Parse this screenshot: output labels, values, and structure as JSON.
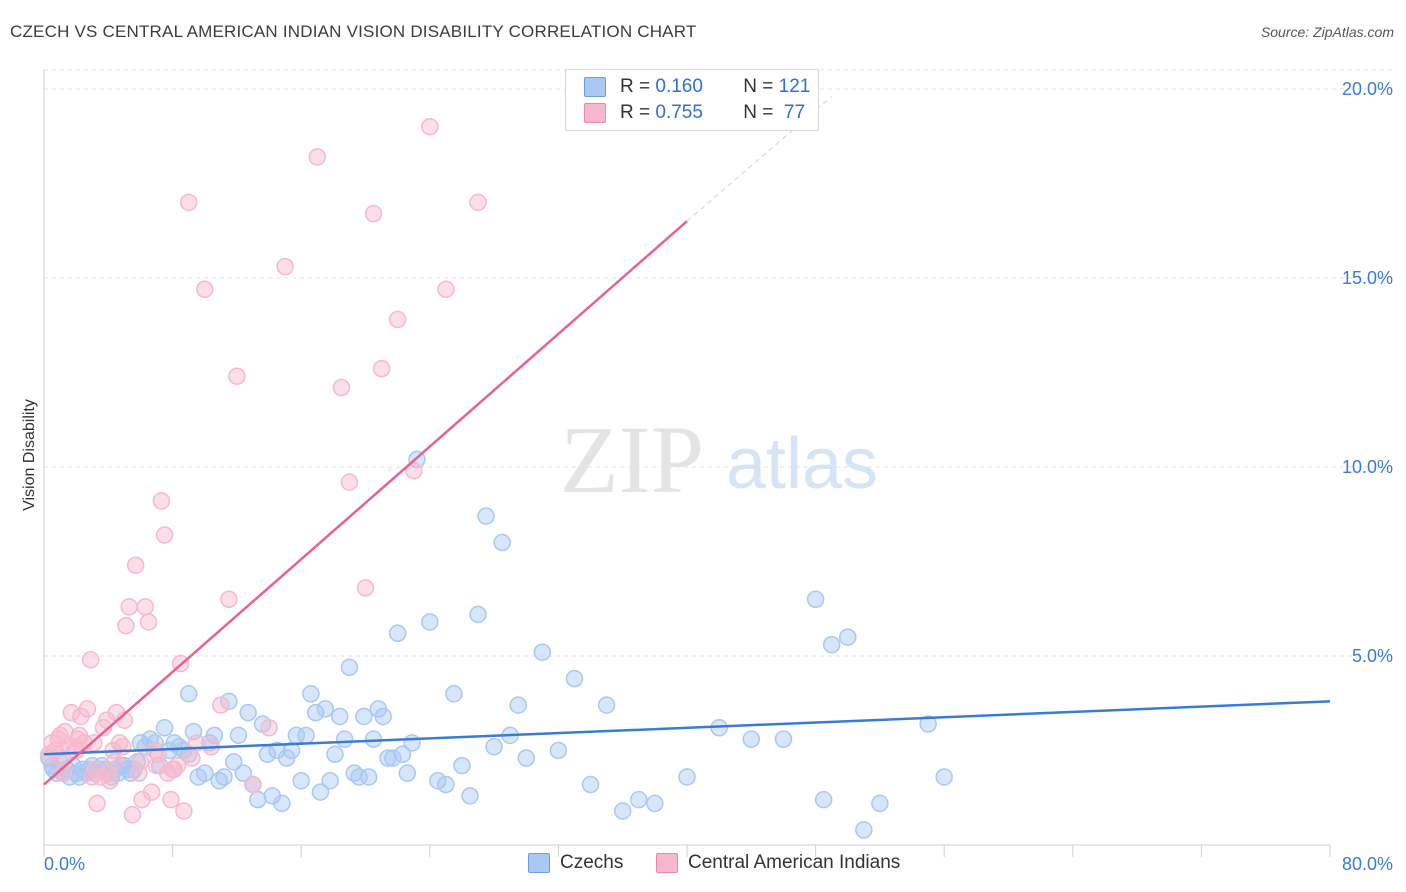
{
  "header": {
    "title": "CZECH VS CENTRAL AMERICAN INDIAN VISION DISABILITY CORRELATION CHART",
    "source": "Source: ZipAtlas.com"
  },
  "watermark": {
    "zip": "ZIP",
    "atlas": "atlas"
  },
  "legend": {
    "rows": [
      {
        "r_label": "R =",
        "r_value": "0.160",
        "n_label": "N =",
        "n_value": "121",
        "color": "#a9c8f2"
      },
      {
        "r_label": "R =",
        "r_value": "0.755",
        "n_label": "N =",
        "n_value": "77",
        "color": "#f7b8cb"
      }
    ]
  },
  "bottom_legend": [
    {
      "label": "Czechs",
      "color": "#a9c8f2"
    },
    {
      "label": "Central American Indians",
      "color": "#f7b8cb"
    }
  ],
  "chart_data": {
    "type": "scatter",
    "title": "CZECH VS CENTRAL AMERICAN INDIAN VISION DISABILITY CORRELATION CHART",
    "xlabel": "",
    "ylabel": "Vision Disability",
    "xlim": [
      0,
      80
    ],
    "ylim": [
      0,
      20.5
    ],
    "x_tick_labels": [
      "0.0%",
      "80.0%"
    ],
    "y_ticks": [
      5,
      10,
      15,
      20
    ],
    "y_tick_labels": [
      "5.0%",
      "10.0%",
      "15.0%",
      "20.0%"
    ],
    "grid": true,
    "series": [
      {
        "name": "Czechs",
        "color": "#3a7bd5",
        "fill": "#a9c8f2",
        "trend": {
          "x": [
            0,
            80
          ],
          "y": [
            2.4,
            3.8
          ],
          "style": "solid"
        },
        "points": [
          [
            0.3,
            2.3
          ],
          [
            0.5,
            2.1
          ],
          [
            0.6,
            2.0
          ],
          [
            0.8,
            1.9
          ],
          [
            1.0,
            2.2
          ],
          [
            1.2,
            1.9
          ],
          [
            1.4,
            2.0
          ],
          [
            1.6,
            1.8
          ],
          [
            1.8,
            2.1
          ],
          [
            2.0,
            1.9
          ],
          [
            2.2,
            1.8
          ],
          [
            2.4,
            2.0
          ],
          [
            2.6,
            1.9
          ],
          [
            2.8,
            2.0
          ],
          [
            3.0,
            2.1
          ],
          [
            3.2,
            1.9
          ],
          [
            3.4,
            2.0
          ],
          [
            3.6,
            2.1
          ],
          [
            3.8,
            2.0
          ],
          [
            4.0,
            1.9
          ],
          [
            4.2,
            1.8
          ],
          [
            4.4,
            2.0
          ],
          [
            4.6,
            1.9
          ],
          [
            4.8,
            2.1
          ],
          [
            5.0,
            2.1
          ],
          [
            5.2,
            2.0
          ],
          [
            5.4,
            1.9
          ],
          [
            5.6,
            2.0
          ],
          [
            5.8,
            2.2
          ],
          [
            6.0,
            2.7
          ],
          [
            6.3,
            2.6
          ],
          [
            6.6,
            2.8
          ],
          [
            6.9,
            2.7
          ],
          [
            7.2,
            2.1
          ],
          [
            7.5,
            3.1
          ],
          [
            7.8,
            2.5
          ],
          [
            8.1,
            2.7
          ],
          [
            8.4,
            2.6
          ],
          [
            8.7,
            2.5
          ],
          [
            9.0,
            2.4
          ],
          [
            9.3,
            3.0
          ],
          [
            9.6,
            1.8
          ],
          [
            9.0,
            4.0
          ],
          [
            10.0,
            1.9
          ],
          [
            10.3,
            2.7
          ],
          [
            10.6,
            2.9
          ],
          [
            10.9,
            1.7
          ],
          [
            11.2,
            1.8
          ],
          [
            11.5,
            3.8
          ],
          [
            11.8,
            2.2
          ],
          [
            12.1,
            2.9
          ],
          [
            12.4,
            1.9
          ],
          [
            12.7,
            3.5
          ],
          [
            13.0,
            1.6
          ],
          [
            13.3,
            1.2
          ],
          [
            13.6,
            3.2
          ],
          [
            13.9,
            2.4
          ],
          [
            14.2,
            1.3
          ],
          [
            14.5,
            2.5
          ],
          [
            14.8,
            1.1
          ],
          [
            15.1,
            2.3
          ],
          [
            15.4,
            2.5
          ],
          [
            15.7,
            2.9
          ],
          [
            16.0,
            1.7
          ],
          [
            16.3,
            2.9
          ],
          [
            16.6,
            4.0
          ],
          [
            16.9,
            3.5
          ],
          [
            17.2,
            1.4
          ],
          [
            17.5,
            3.6
          ],
          [
            17.8,
            1.7
          ],
          [
            18.1,
            2.4
          ],
          [
            18.4,
            3.4
          ],
          [
            18.7,
            2.8
          ],
          [
            19.0,
            4.7
          ],
          [
            19.3,
            1.9
          ],
          [
            19.6,
            1.8
          ],
          [
            19.9,
            3.4
          ],
          [
            20.2,
            1.8
          ],
          [
            20.5,
            2.8
          ],
          [
            20.8,
            3.6
          ],
          [
            21.1,
            3.4
          ],
          [
            21.4,
            2.3
          ],
          [
            21.7,
            2.3
          ],
          [
            22.0,
            5.6
          ],
          [
            22.3,
            2.4
          ],
          [
            22.6,
            1.9
          ],
          [
            22.9,
            2.7
          ],
          [
            23.2,
            10.2
          ],
          [
            24.0,
            5.9
          ],
          [
            24.5,
            1.7
          ],
          [
            25.0,
            1.6
          ],
          [
            25.5,
            4.0
          ],
          [
            26.0,
            2.1
          ],
          [
            26.5,
            1.3
          ],
          [
            27.0,
            6.1
          ],
          [
            27.5,
            8.7
          ],
          [
            28.0,
            2.6
          ],
          [
            28.5,
            8.0
          ],
          [
            29.0,
            2.9
          ],
          [
            29.5,
            3.7
          ],
          [
            30.0,
            2.3
          ],
          [
            31.0,
            5.1
          ],
          [
            32.0,
            2.5
          ],
          [
            33.0,
            4.4
          ],
          [
            34.0,
            1.6
          ],
          [
            35.0,
            3.7
          ],
          [
            36.0,
            0.9
          ],
          [
            37.0,
            1.2
          ],
          [
            38.0,
            1.1
          ],
          [
            40.0,
            1.8
          ],
          [
            42.0,
            3.1
          ],
          [
            44.0,
            2.8
          ],
          [
            46.0,
            2.8
          ],
          [
            48.0,
            6.5
          ],
          [
            48.5,
            1.2
          ],
          [
            49.0,
            5.3
          ],
          [
            50.0,
            5.5
          ],
          [
            51.0,
            0.4
          ],
          [
            52.0,
            1.1
          ],
          [
            55.0,
            3.2
          ],
          [
            56.0,
            1.8
          ]
        ]
      },
      {
        "name": "Central American Indians",
        "color": "#e8628e",
        "fill": "#f7b8cb",
        "trend": {
          "x": [
            0,
            40
          ],
          "y": [
            1.6,
            16.5
          ],
          "style": "solid",
          "extension": {
            "x": [
              40,
              49
            ],
            "y": [
              16.5,
              19.8
            ],
            "style": "dashed"
          }
        },
        "points": [
          [
            0.3,
            2.4
          ],
          [
            0.5,
            2.7
          ],
          [
            0.7,
            2.5
          ],
          [
            0.9,
            2.8
          ],
          [
            1.1,
            2.3
          ],
          [
            1.3,
            3.0
          ],
          [
            1.5,
            2.6
          ],
          [
            1.7,
            3.5
          ],
          [
            1.9,
            2.6
          ],
          [
            2.1,
            2.8
          ],
          [
            2.3,
            3.4
          ],
          [
            2.5,
            2.7
          ],
          [
            2.7,
            3.6
          ],
          [
            2.9,
            4.9
          ],
          [
            3.1,
            2.7
          ],
          [
            3.3,
            1.1
          ],
          [
            3.5,
            1.8
          ],
          [
            3.7,
            3.1
          ],
          [
            3.9,
            3.3
          ],
          [
            4.1,
            1.7
          ],
          [
            4.3,
            2.5
          ],
          [
            4.5,
            3.5
          ],
          [
            4.7,
            2.7
          ],
          [
            4.9,
            2.6
          ],
          [
            5.1,
            5.8
          ],
          [
            5.3,
            6.3
          ],
          [
            5.5,
            0.8
          ],
          [
            5.7,
            7.4
          ],
          [
            5.9,
            1.9
          ],
          [
            6.1,
            1.2
          ],
          [
            6.3,
            6.3
          ],
          [
            6.5,
            5.9
          ],
          [
            6.7,
            1.4
          ],
          [
            6.9,
            2.5
          ],
          [
            7.1,
            2.4
          ],
          [
            7.3,
            9.1
          ],
          [
            7.5,
            8.2
          ],
          [
            7.7,
            1.9
          ],
          [
            7.9,
            1.2
          ],
          [
            8.1,
            2.0
          ],
          [
            8.3,
            2.1
          ],
          [
            8.5,
            4.8
          ],
          [
            8.7,
            0.9
          ],
          [
            9.0,
            17.0
          ],
          [
            9.5,
            2.7
          ],
          [
            10.0,
            14.7
          ],
          [
            11.0,
            3.7
          ],
          [
            11.5,
            6.5
          ],
          [
            12.0,
            12.4
          ],
          [
            13.0,
            1.6
          ],
          [
            14.0,
            3.1
          ],
          [
            15.0,
            15.3
          ],
          [
            17.0,
            18.2
          ],
          [
            18.5,
            12.1
          ],
          [
            19.0,
            9.6
          ],
          [
            20.0,
            6.8
          ],
          [
            20.5,
            16.7
          ],
          [
            21.0,
            12.6
          ],
          [
            22.0,
            13.9
          ],
          [
            23.0,
            9.9
          ],
          [
            24.0,
            19.0
          ],
          [
            25.0,
            14.7
          ],
          [
            27.0,
            17.0
          ],
          [
            1.0,
            2.9
          ],
          [
            1.2,
            1.9
          ],
          [
            2.0,
            2.5
          ],
          [
            2.2,
            2.9
          ],
          [
            3.0,
            1.8
          ],
          [
            3.2,
            2.0
          ],
          [
            4.0,
            1.9
          ],
          [
            4.4,
            2.2
          ],
          [
            5.0,
            3.3
          ],
          [
            6.0,
            2.2
          ],
          [
            7.0,
            2.1
          ],
          [
            8.0,
            2.0
          ],
          [
            9.2,
            2.3
          ],
          [
            10.4,
            2.6
          ]
        ]
      }
    ]
  }
}
